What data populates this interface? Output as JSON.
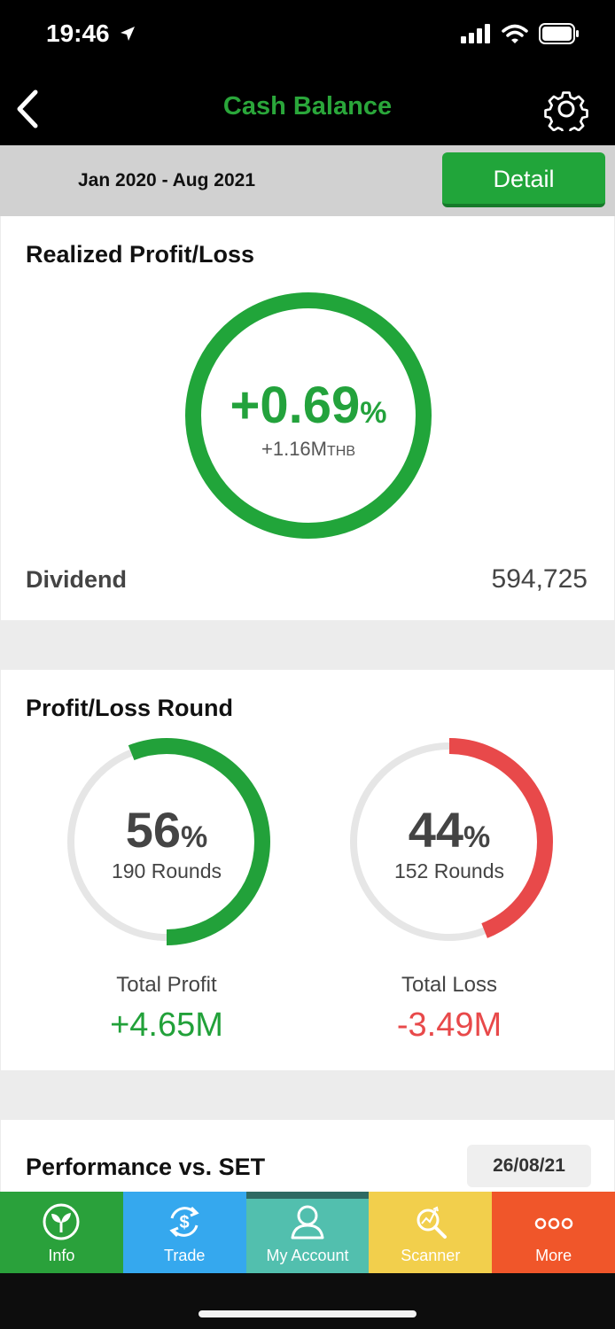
{
  "status": {
    "time": "19:46"
  },
  "nav": {
    "title": "Cash Balance"
  },
  "filter": {
    "date_range": "Jan 2020 - Aug 2021",
    "detail_label": "Detail"
  },
  "realized": {
    "title": "Realized Profit/Loss",
    "percent": "+0.69",
    "percent_sign": "%",
    "amount": "+1.16M",
    "amount_unit": "THB",
    "dividend_label": "Dividend",
    "dividend_value": "594,725"
  },
  "rounds": {
    "title": "Profit/Loss Round",
    "profit": {
      "percent": "56",
      "percent_sign": "%",
      "fraction": 0.56,
      "rounds": "190 Rounds",
      "caption": "Total Profit",
      "value": "+4.65M",
      "color": "#22a13a"
    },
    "loss": {
      "percent": "44",
      "percent_sign": "%",
      "fraction": 0.44,
      "rounds": "152 Rounds",
      "caption": "Total Loss",
      "value": "-3.49M",
      "color": "#e8494a"
    }
  },
  "performance": {
    "title": "Performance vs. SET",
    "date": "26/08/21"
  },
  "tabs": [
    {
      "label": "Info",
      "icon": "plant-icon",
      "color": "#2aa13b"
    },
    {
      "label": "Trade",
      "icon": "dollar-cycle-icon",
      "color": "#35a8ee"
    },
    {
      "label": "My Account",
      "icon": "user-icon",
      "color": "#52bfae"
    },
    {
      "label": "Scanner",
      "icon": "magnifier-icon",
      "color": "#f2cf4c"
    },
    {
      "label": "More",
      "icon": "more-dots-icon",
      "color": "#f0562a"
    }
  ],
  "colors": {
    "accent_green": "#21a53a",
    "loss_red": "#e8494a",
    "track_gray": "#e6e6e6"
  }
}
